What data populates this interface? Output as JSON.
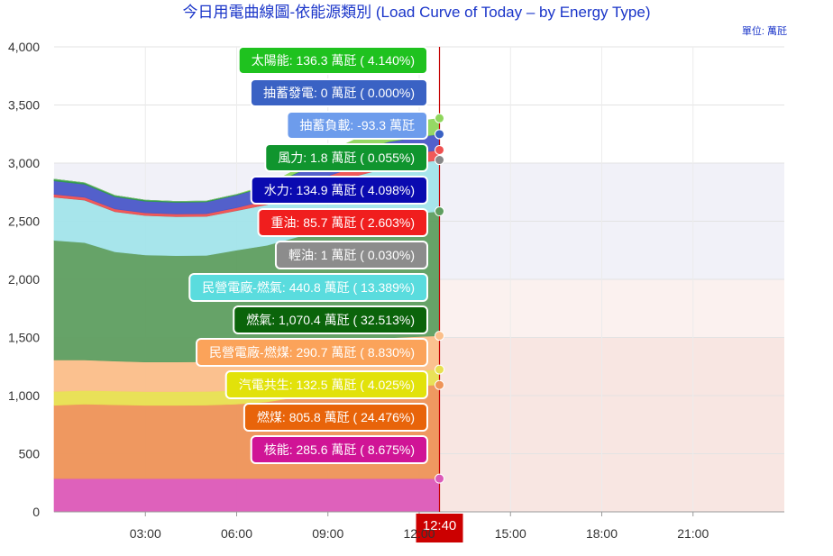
{
  "chart_data": {
    "type": "area",
    "title": "今日用電曲線圖-依能源類別 (Load Curve of Today – by Energy Type)",
    "unit_label": "單位: 萬瓩",
    "ylim": [
      0,
      4000
    ],
    "y_ticks": [
      "0",
      "500",
      "1,000",
      "1,500",
      "2,000",
      "2,500",
      "3,000",
      "3,500",
      "4,000"
    ],
    "x_range_hours": [
      0,
      24
    ],
    "x_ticks": [
      {
        "hour": 3,
        "label": "03:00"
      },
      {
        "hour": 6,
        "label": "06:00"
      },
      {
        "hour": 9,
        "label": "09:00"
      },
      {
        "hour": 12,
        "label": "12:00"
      },
      {
        "hour": 15,
        "label": "15:00"
      },
      {
        "hour": 18,
        "label": "18:00"
      },
      {
        "hour": 21,
        "label": "21:00"
      }
    ],
    "current_time": {
      "hour": 12.667,
      "label": "12:40"
    },
    "bands": [
      {
        "from": 2000,
        "to": 3000,
        "color": "#f1f1f8"
      },
      {
        "from": 1500,
        "to": 2000,
        "color": "#fbf1ef"
      },
      {
        "from": 0,
        "to": 1500,
        "color": "#f8e6e2"
      }
    ],
    "x": [
      0,
      1,
      2,
      3,
      4,
      5,
      6,
      7,
      8,
      9,
      10,
      11,
      12,
      12.667
    ],
    "series": [
      {
        "name": "核能",
        "color": "#dc5ab8",
        "values": [
          286,
          286,
          286,
          286,
          286,
          286,
          286,
          286,
          286,
          286,
          286,
          286,
          286,
          285.6
        ]
      },
      {
        "name": "燃煤",
        "color": "#ee9458",
        "values": [
          630,
          640,
          635,
          630,
          630,
          632,
          640,
          660,
          700,
          740,
          770,
          790,
          800,
          805.8
        ]
      },
      {
        "name": "汽電共生",
        "color": "#e8e050",
        "values": [
          120,
          118,
          118,
          118,
          118,
          118,
          118,
          120,
          124,
          128,
          130,
          131,
          132,
          132.5
        ]
      },
      {
        "name": "民營電廠-燃煤",
        "color": "#fbbf8a",
        "values": [
          270,
          262,
          258,
          255,
          255,
          255,
          262,
          272,
          280,
          285,
          288,
          290,
          290,
          290.7
        ]
      },
      {
        "name": "燃氣",
        "color": "#5e9e60",
        "values": [
          1030,
          1010,
          940,
          920,
          915,
          915,
          945,
          955,
          975,
          995,
          1010,
          1040,
          1060,
          1070.4
        ]
      },
      {
        "name": "民營電廠-燃氣",
        "color": "#a2e4ea",
        "values": [
          370,
          365,
          345,
          340,
          335,
          335,
          340,
          350,
          365,
          385,
          410,
          425,
          435,
          440.8
        ]
      },
      {
        "name": "輕油",
        "color": "#888888",
        "values": [
          1,
          1,
          1,
          1,
          1,
          1,
          1,
          1,
          1,
          1,
          1,
          1,
          1,
          1
        ]
      },
      {
        "name": "重油",
        "color": "#ef5050",
        "values": [
          25,
          24,
          23,
          22,
          22,
          22,
          24,
          35,
          55,
          70,
          80,
          85,
          86,
          85.7
        ]
      },
      {
        "name": "水力",
        "color": "#4a57c8",
        "values": [
          115,
          112,
          105,
          100,
          100,
          102,
          108,
          120,
          130,
          132,
          134,
          135,
          135,
          134.9
        ]
      },
      {
        "name": "風力",
        "color": "#2e9a4a",
        "values": [
          15,
          13,
          11,
          10,
          9,
          8,
          7,
          6,
          5,
          4,
          3,
          2,
          2,
          1.8
        ]
      },
      {
        "name": "抽蓄發電",
        "color": "#3a62c4",
        "values": [
          0,
          0,
          0,
          0,
          0,
          0,
          0,
          0,
          0,
          0,
          0,
          0,
          0,
          0
        ]
      },
      {
        "name": "太陽能",
        "color": "#8fd65c",
        "values": [
          0,
          0,
          0,
          0,
          0,
          0,
          0,
          8,
          30,
          70,
          105,
          128,
          135,
          136.3
        ]
      }
    ],
    "tooltip": {
      "rows": [
        {
          "label": "太陽能: 136.3 萬瓩 ( 4.140%)",
          "color": "#1fc21f",
          "border": "#1fc21f"
        },
        {
          "label": "抽蓄發電: 0 萬瓩 ( 0.000%)",
          "color": "#3a62c4",
          "border": "#3a62c4"
        },
        {
          "label": "抽蓄負載: -93.3 萬瓩",
          "color": "#6d9cec",
          "border": "#6d9cec"
        },
        {
          "label": "風力: 1.8 萬瓩 ( 0.055%)",
          "color": "#10952e",
          "border": "#10952e"
        },
        {
          "label": "水力: 134.9 萬瓩 ( 4.098%)",
          "color": "#0a0ab0",
          "border": "#0a0ab0"
        },
        {
          "label": "重油: 85.7 萬瓩 ( 2.603%)",
          "color": "#f01e1e",
          "border": "#f01e1e"
        },
        {
          "label": "輕油: 1 萬瓩 ( 0.030%)",
          "color": "#8c8c8c",
          "border": "#8c8c8c"
        },
        {
          "label": "民營電廠-燃氣: 440.8 萬瓩 ( 13.389%)",
          "color": "#5adcde",
          "border": "#5adcde"
        },
        {
          "label": "燃氣: 1,070.4 萬瓩 ( 32.513%)",
          "color": "#0b640b",
          "border": "#0b640b"
        },
        {
          "label": "民營電廠-燃煤: 290.7 萬瓩 ( 8.830%)",
          "color": "#fba35a",
          "border": "#fba35a"
        },
        {
          "label": "汽電共生: 132.5 萬瓩 ( 4.025%)",
          "color": "#e2e20a",
          "border": "#e2e20a"
        },
        {
          "label": "燃煤: 805.8 萬瓩 ( 24.476%)",
          "color": "#e8640a",
          "border": "#e8640a"
        },
        {
          "label": "核能: 285.6 萬瓩 ( 8.675%)",
          "color": "#d01496",
          "border": "#d01496"
        }
      ]
    }
  }
}
